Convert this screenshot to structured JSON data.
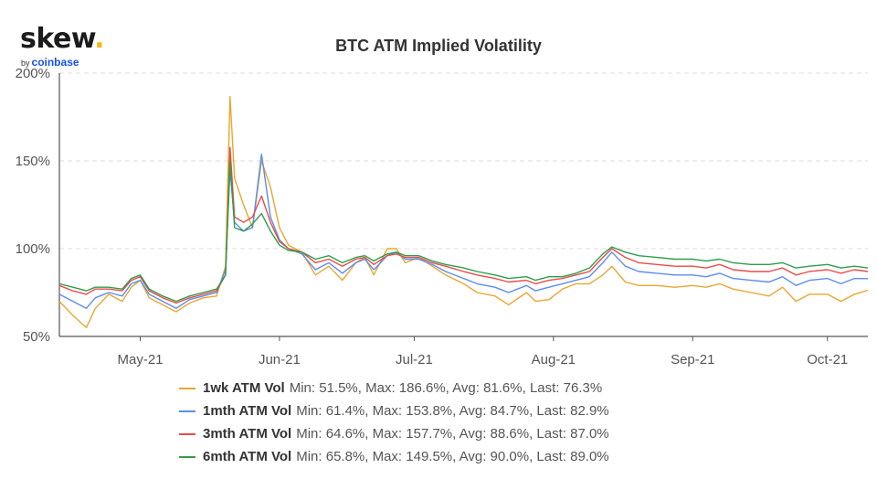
{
  "logo": {
    "name": "skew",
    "dot": ".",
    "by": "by",
    "brand": "coinbase"
  },
  "chart_data": {
    "type": "line",
    "title": "BTC ATM Implied Volatility",
    "xlabel": "",
    "ylabel": "",
    "x_domain": [
      "2021-04-13",
      "2021-10-10"
    ],
    "ylim": [
      50,
      200
    ],
    "y_ticks": [
      50,
      100,
      150,
      200
    ],
    "y_tick_labels": [
      "50%",
      "100%",
      "150%",
      "200%"
    ],
    "x_ticks": [
      {
        "date": "2021-05-01",
        "label": "May-21"
      },
      {
        "date": "2021-06-01",
        "label": "Jun-21"
      },
      {
        "date": "2021-07-01",
        "label": "Jul-21"
      },
      {
        "date": "2021-08-01",
        "label": "Aug-21"
      },
      {
        "date": "2021-09-01",
        "label": "Sep-21"
      },
      {
        "date": "2021-10-01",
        "label": "Oct-21"
      }
    ],
    "grid": "horizontal dashed",
    "legend_position": "bottom",
    "series": [
      {
        "name": "1wk ATM Vol",
        "color": "#e8a72f",
        "stats": "Min: 51.5%, Max: 186.6%, Avg: 81.6%, Last: 76.3%",
        "points": [
          [
            "2021-04-13",
            70
          ],
          [
            "2021-04-16",
            62
          ],
          [
            "2021-04-19",
            55
          ],
          [
            "2021-04-21",
            66
          ],
          [
            "2021-04-24",
            74
          ],
          [
            "2021-04-27",
            70
          ],
          [
            "2021-04-29",
            78
          ],
          [
            "2021-05-01",
            82
          ],
          [
            "2021-05-03",
            72
          ],
          [
            "2021-05-06",
            68
          ],
          [
            "2021-05-09",
            64
          ],
          [
            "2021-05-12",
            69
          ],
          [
            "2021-05-15",
            72
          ],
          [
            "2021-05-18",
            73
          ],
          [
            "2021-05-20",
            90
          ],
          [
            "2021-05-21",
            186.6
          ],
          [
            "2021-05-22",
            140
          ],
          [
            "2021-05-24",
            125
          ],
          [
            "2021-05-26",
            112
          ],
          [
            "2021-05-28",
            150
          ],
          [
            "2021-05-30",
            135
          ],
          [
            "2021-06-01",
            112
          ],
          [
            "2021-06-03",
            102
          ],
          [
            "2021-06-06",
            98
          ],
          [
            "2021-06-09",
            85
          ],
          [
            "2021-06-12",
            90
          ],
          [
            "2021-06-15",
            82
          ],
          [
            "2021-06-18",
            92
          ],
          [
            "2021-06-20",
            95
          ],
          [
            "2021-06-22",
            85
          ],
          [
            "2021-06-25",
            100
          ],
          [
            "2021-06-27",
            100
          ],
          [
            "2021-06-29",
            92
          ],
          [
            "2021-07-02",
            95
          ],
          [
            "2021-07-05",
            90
          ],
          [
            "2021-07-08",
            85
          ],
          [
            "2021-07-12",
            80
          ],
          [
            "2021-07-15",
            75
          ],
          [
            "2021-07-19",
            73
          ],
          [
            "2021-07-22",
            68
          ],
          [
            "2021-07-26",
            75
          ],
          [
            "2021-07-28",
            70
          ],
          [
            "2021-07-31",
            71
          ],
          [
            "2021-08-03",
            77
          ],
          [
            "2021-08-06",
            80
          ],
          [
            "2021-08-09",
            80
          ],
          [
            "2021-08-12",
            85
          ],
          [
            "2021-08-14",
            90
          ],
          [
            "2021-08-17",
            81
          ],
          [
            "2021-08-20",
            79
          ],
          [
            "2021-08-24",
            79
          ],
          [
            "2021-08-28",
            78
          ],
          [
            "2021-09-01",
            79
          ],
          [
            "2021-09-04",
            78
          ],
          [
            "2021-09-07",
            80
          ],
          [
            "2021-09-10",
            77
          ],
          [
            "2021-09-14",
            75
          ],
          [
            "2021-09-18",
            73
          ],
          [
            "2021-09-21",
            78
          ],
          [
            "2021-09-24",
            70
          ],
          [
            "2021-09-27",
            74
          ],
          [
            "2021-10-01",
            74
          ],
          [
            "2021-10-04",
            70
          ],
          [
            "2021-10-07",
            74
          ],
          [
            "2021-10-10",
            76.3
          ]
        ]
      },
      {
        "name": "1mth ATM Vol",
        "color": "#5b8def",
        "stats": "Min: 61.4%, Max: 153.8%, Avg: 84.7%, Last: 82.9%",
        "points": [
          [
            "2021-04-13",
            74
          ],
          [
            "2021-04-16",
            70
          ],
          [
            "2021-04-19",
            66
          ],
          [
            "2021-04-21",
            72
          ],
          [
            "2021-04-24",
            75
          ],
          [
            "2021-04-27",
            73
          ],
          [
            "2021-04-29",
            80
          ],
          [
            "2021-05-01",
            82
          ],
          [
            "2021-05-03",
            74
          ],
          [
            "2021-05-06",
            70
          ],
          [
            "2021-05-09",
            66
          ],
          [
            "2021-05-12",
            71
          ],
          [
            "2021-05-15",
            73
          ],
          [
            "2021-05-18",
            75
          ],
          [
            "2021-05-20",
            88
          ],
          [
            "2021-05-21",
            145
          ],
          [
            "2021-05-22",
            115
          ],
          [
            "2021-05-24",
            110
          ],
          [
            "2021-05-26",
            112
          ],
          [
            "2021-05-28",
            153.8
          ],
          [
            "2021-05-30",
            118
          ],
          [
            "2021-06-01",
            105
          ],
          [
            "2021-06-03",
            100
          ],
          [
            "2021-06-06",
            97
          ],
          [
            "2021-06-09",
            88
          ],
          [
            "2021-06-12",
            92
          ],
          [
            "2021-06-15",
            86
          ],
          [
            "2021-06-18",
            92
          ],
          [
            "2021-06-20",
            94
          ],
          [
            "2021-06-22",
            88
          ],
          [
            "2021-06-25",
            96
          ],
          [
            "2021-06-27",
            98
          ],
          [
            "2021-06-29",
            94
          ],
          [
            "2021-07-02",
            94
          ],
          [
            "2021-07-05",
            91
          ],
          [
            "2021-07-08",
            87
          ],
          [
            "2021-07-12",
            83
          ],
          [
            "2021-07-15",
            80
          ],
          [
            "2021-07-19",
            78
          ],
          [
            "2021-07-22",
            75
          ],
          [
            "2021-07-26",
            79
          ],
          [
            "2021-07-28",
            76
          ],
          [
            "2021-07-31",
            78
          ],
          [
            "2021-08-03",
            80
          ],
          [
            "2021-08-06",
            82
          ],
          [
            "2021-08-09",
            84
          ],
          [
            "2021-08-12",
            92
          ],
          [
            "2021-08-14",
            98
          ],
          [
            "2021-08-17",
            90
          ],
          [
            "2021-08-20",
            87
          ],
          [
            "2021-08-24",
            86
          ],
          [
            "2021-08-28",
            85
          ],
          [
            "2021-09-01",
            85
          ],
          [
            "2021-09-04",
            84
          ],
          [
            "2021-09-07",
            86
          ],
          [
            "2021-09-10",
            83
          ],
          [
            "2021-09-14",
            82
          ],
          [
            "2021-09-18",
            81
          ],
          [
            "2021-09-21",
            84
          ],
          [
            "2021-09-24",
            79
          ],
          [
            "2021-09-27",
            82
          ],
          [
            "2021-10-01",
            83
          ],
          [
            "2021-10-04",
            80
          ],
          [
            "2021-10-07",
            83
          ],
          [
            "2021-10-10",
            82.9
          ]
        ]
      },
      {
        "name": "3mth ATM Vol",
        "color": "#e84c4c",
        "stats": "Min: 64.6%, Max: 157.7%, Avg: 88.6%, Last: 87.0%",
        "points": [
          [
            "2021-04-13",
            79
          ],
          [
            "2021-04-16",
            76
          ],
          [
            "2021-04-19",
            74
          ],
          [
            "2021-04-21",
            77
          ],
          [
            "2021-04-24",
            77
          ],
          [
            "2021-04-27",
            76
          ],
          [
            "2021-04-29",
            82
          ],
          [
            "2021-05-01",
            84
          ],
          [
            "2021-05-03",
            76
          ],
          [
            "2021-05-06",
            72
          ],
          [
            "2021-05-09",
            69
          ],
          [
            "2021-05-12",
            72
          ],
          [
            "2021-05-15",
            74
          ],
          [
            "2021-05-18",
            76
          ],
          [
            "2021-05-20",
            85
          ],
          [
            "2021-05-21",
            157.7
          ],
          [
            "2021-05-22",
            118
          ],
          [
            "2021-05-24",
            115
          ],
          [
            "2021-05-26",
            118
          ],
          [
            "2021-05-28",
            130
          ],
          [
            "2021-05-30",
            115
          ],
          [
            "2021-06-01",
            104
          ],
          [
            "2021-06-03",
            100
          ],
          [
            "2021-06-06",
            98
          ],
          [
            "2021-06-09",
            92
          ],
          [
            "2021-06-12",
            94
          ],
          [
            "2021-06-15",
            90
          ],
          [
            "2021-06-18",
            94
          ],
          [
            "2021-06-20",
            95
          ],
          [
            "2021-06-22",
            91
          ],
          [
            "2021-06-25",
            96
          ],
          [
            "2021-06-27",
            97
          ],
          [
            "2021-06-29",
            95
          ],
          [
            "2021-07-02",
            95
          ],
          [
            "2021-07-05",
            92
          ],
          [
            "2021-07-08",
            90
          ],
          [
            "2021-07-12",
            87
          ],
          [
            "2021-07-15",
            85
          ],
          [
            "2021-07-19",
            83
          ],
          [
            "2021-07-22",
            81
          ],
          [
            "2021-07-26",
            82
          ],
          [
            "2021-07-28",
            80
          ],
          [
            "2021-07-31",
            82
          ],
          [
            "2021-08-03",
            83
          ],
          [
            "2021-08-06",
            85
          ],
          [
            "2021-08-09",
            87
          ],
          [
            "2021-08-12",
            95
          ],
          [
            "2021-08-14",
            100
          ],
          [
            "2021-08-17",
            95
          ],
          [
            "2021-08-20",
            92
          ],
          [
            "2021-08-24",
            91
          ],
          [
            "2021-08-28",
            90
          ],
          [
            "2021-09-01",
            90
          ],
          [
            "2021-09-04",
            89
          ],
          [
            "2021-09-07",
            91
          ],
          [
            "2021-09-10",
            88
          ],
          [
            "2021-09-14",
            87
          ],
          [
            "2021-09-18",
            87
          ],
          [
            "2021-09-21",
            89
          ],
          [
            "2021-09-24",
            85
          ],
          [
            "2021-09-27",
            87
          ],
          [
            "2021-10-01",
            88
          ],
          [
            "2021-10-04",
            86
          ],
          [
            "2021-10-07",
            88
          ],
          [
            "2021-10-10",
            87.0
          ]
        ]
      },
      {
        "name": "6mth ATM Vol",
        "color": "#2e9e4a",
        "stats": "Min: 65.8%, Max: 149.5%, Avg: 90.0%, Last: 89.0%",
        "points": [
          [
            "2021-04-13",
            80
          ],
          [
            "2021-04-16",
            78
          ],
          [
            "2021-04-19",
            76
          ],
          [
            "2021-04-21",
            78
          ],
          [
            "2021-04-24",
            78
          ],
          [
            "2021-04-27",
            77
          ],
          [
            "2021-04-29",
            83
          ],
          [
            "2021-05-01",
            85
          ],
          [
            "2021-05-03",
            77
          ],
          [
            "2021-05-06",
            73
          ],
          [
            "2021-05-09",
            70
          ],
          [
            "2021-05-12",
            73
          ],
          [
            "2021-05-15",
            75
          ],
          [
            "2021-05-18",
            77
          ],
          [
            "2021-05-20",
            85
          ],
          [
            "2021-05-21",
            149.5
          ],
          [
            "2021-05-22",
            112
          ],
          [
            "2021-05-24",
            110
          ],
          [
            "2021-05-26",
            114
          ],
          [
            "2021-05-28",
            120
          ],
          [
            "2021-05-30",
            110
          ],
          [
            "2021-06-01",
            102
          ],
          [
            "2021-06-03",
            99
          ],
          [
            "2021-06-06",
            98
          ],
          [
            "2021-06-09",
            94
          ],
          [
            "2021-06-12",
            96
          ],
          [
            "2021-06-15",
            92
          ],
          [
            "2021-06-18",
            95
          ],
          [
            "2021-06-20",
            96
          ],
          [
            "2021-06-22",
            93
          ],
          [
            "2021-06-25",
            97
          ],
          [
            "2021-06-27",
            98
          ],
          [
            "2021-06-29",
            96
          ],
          [
            "2021-07-02",
            96
          ],
          [
            "2021-07-05",
            93
          ],
          [
            "2021-07-08",
            91
          ],
          [
            "2021-07-12",
            89
          ],
          [
            "2021-07-15",
            87
          ],
          [
            "2021-07-19",
            85
          ],
          [
            "2021-07-22",
            83
          ],
          [
            "2021-07-26",
            84
          ],
          [
            "2021-07-28",
            82
          ],
          [
            "2021-07-31",
            84
          ],
          [
            "2021-08-03",
            84
          ],
          [
            "2021-08-06",
            86
          ],
          [
            "2021-08-09",
            89
          ],
          [
            "2021-08-12",
            97
          ],
          [
            "2021-08-14",
            101
          ],
          [
            "2021-08-17",
            98
          ],
          [
            "2021-08-20",
            96
          ],
          [
            "2021-08-24",
            95
          ],
          [
            "2021-08-28",
            94
          ],
          [
            "2021-09-01",
            94
          ],
          [
            "2021-09-04",
            93
          ],
          [
            "2021-09-07",
            94
          ],
          [
            "2021-09-10",
            92
          ],
          [
            "2021-09-14",
            91
          ],
          [
            "2021-09-18",
            91
          ],
          [
            "2021-09-21",
            92
          ],
          [
            "2021-09-24",
            89
          ],
          [
            "2021-09-27",
            90
          ],
          [
            "2021-10-01",
            91
          ],
          [
            "2021-10-04",
            89
          ],
          [
            "2021-10-07",
            90
          ],
          [
            "2021-10-10",
            89.0
          ]
        ]
      }
    ]
  }
}
